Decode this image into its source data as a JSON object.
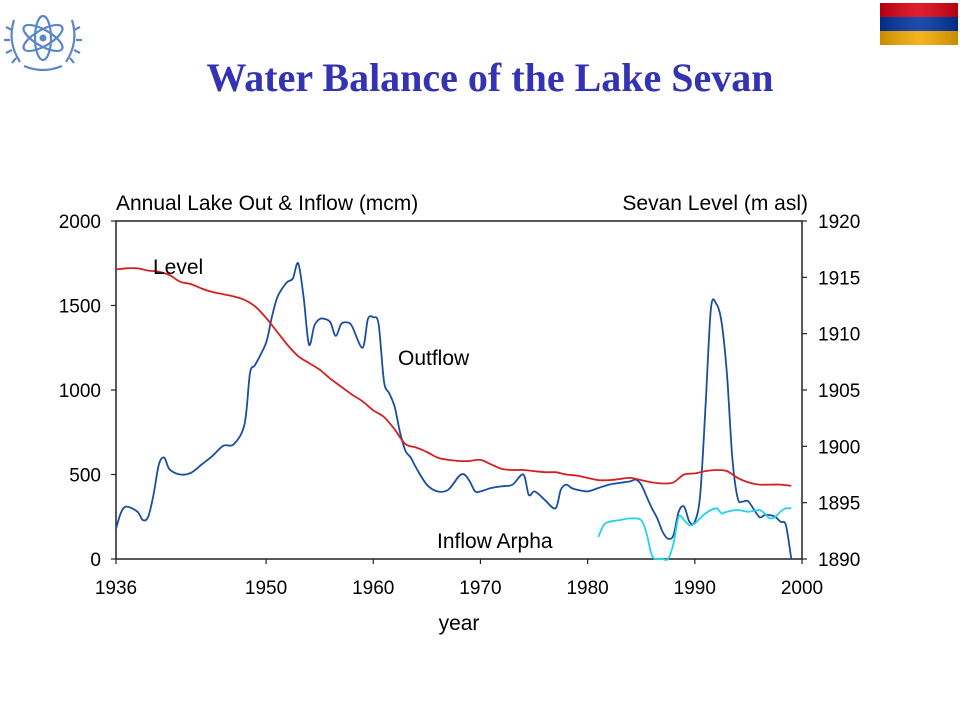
{
  "slide": {
    "title": "Water Balance of the Lake Sevan"
  },
  "icons": {
    "logo": "un-atom-emblem-icon",
    "flag": "armenia-flag-icon",
    "flag_colors": [
      "#d90012",
      "#0033a0",
      "#f2a800"
    ]
  },
  "chart_data": {
    "type": "line",
    "x_label": "year",
    "left_axis_title": "Annual Lake Out & Inflow (mcm)",
    "right_axis_title": "Sevan Level (m asl)",
    "xlim": [
      1936,
      2000
    ],
    "ylim_left": [
      0,
      2000
    ],
    "ylim_right": [
      1890,
      1920
    ],
    "x_ticks": [
      "1936",
      "1950",
      "1960",
      "1970",
      "1980",
      "1990",
      "2000"
    ],
    "left_ticks": [
      "0",
      "500",
      "1000",
      "1500",
      "2000"
    ],
    "right_ticks": [
      "1890",
      "1895",
      "1900",
      "1905",
      "1910",
      "1915",
      "1920"
    ],
    "grid": false,
    "series": [
      {
        "name": "Outflow",
        "axis": "left",
        "color": "#1a4ea0",
        "x": [
          1936,
          1936.5,
          1937,
          1938,
          1938.5,
          1939,
          1939.5,
          1940,
          1940.5,
          1941,
          1942,
          1943,
          1944,
          1945,
          1946,
          1947,
          1948,
          1948.5,
          1949,
          1950,
          1950.5,
          1951,
          1951.5,
          1952,
          1952.5,
          1953,
          1953.5,
          1954,
          1954.5,
          1955,
          1955.5,
          1956,
          1956.5,
          1957,
          1957.5,
          1958,
          1959,
          1959.5,
          1960,
          1960.5,
          1961,
          1961.5,
          1962,
          1962.5,
          1963,
          1963.5,
          1964,
          1965,
          1966,
          1967,
          1968,
          1968.5,
          1969,
          1969.5,
          1970,
          1971,
          1972,
          1973,
          1974,
          1974.5,
          1975,
          1975.5,
          1976,
          1977,
          1977.5,
          1978,
          1978.5,
          1979,
          1980,
          1981,
          1982,
          1983,
          1984,
          1984.5,
          1985,
          1985.5,
          1986,
          1986.5,
          1987,
          1987.5,
          1988,
          1988.5,
          1989,
          1989.5,
          1990,
          1990.5,
          1991,
          1991.5,
          1992,
          1992.5,
          1993,
          1993.5,
          1994,
          1994.5,
          1995,
          1996,
          1996.5,
          1997,
          1997.5,
          1998,
          1998.5,
          1999
        ],
        "values": [
          180,
          280,
          310,
          280,
          230,
          250,
          380,
          560,
          600,
          530,
          500,
          510,
          560,
          610,
          670,
          680,
          800,
          1100,
          1150,
          1280,
          1420,
          1540,
          1600,
          1640,
          1660,
          1750,
          1550,
          1270,
          1380,
          1420,
          1420,
          1400,
          1320,
          1390,
          1400,
          1380,
          1250,
          1420,
          1430,
          1390,
          1050,
          980,
          900,
          750,
          640,
          600,
          540,
          440,
          400,
          410,
          490,
          500,
          460,
          400,
          400,
          420,
          430,
          440,
          500,
          380,
          400,
          380,
          350,
          300,
          410,
          440,
          420,
          410,
          400,
          420,
          440,
          450,
          460,
          470,
          440,
          370,
          300,
          240,
          160,
          120,
          140,
          280,
          310,
          220,
          220,
          380,
          900,
          1480,
          1510,
          1400,
          1090,
          600,
          360,
          340,
          340,
          250,
          260,
          260,
          250,
          220,
          200,
          0
        ],
        "label": "Outflow"
      },
      {
        "name": "Level",
        "axis": "right",
        "color": "#d42020",
        "x": [
          1936,
          1937,
          1938,
          1939,
          1940,
          1941,
          1942,
          1943,
          1944,
          1945,
          1946,
          1947,
          1948,
          1949,
          1950,
          1951,
          1952,
          1953,
          1954,
          1955,
          1956,
          1957,
          1958,
          1959,
          1960,
          1961,
          1962,
          1963,
          1964,
          1965,
          1966,
          1967,
          1968,
          1969,
          1970,
          1971,
          1972,
          1973,
          1974,
          1975,
          1976,
          1977,
          1978,
          1979,
          1980,
          1981,
          1982,
          1983,
          1984,
          1985,
          1986,
          1987,
          1988,
          1989,
          1990,
          1991,
          1992,
          1993,
          1994,
          1995,
          1996,
          1997,
          1998,
          1999
        ],
        "values": [
          1915.7,
          1915.8,
          1915.8,
          1915.6,
          1915.5,
          1915.2,
          1914.6,
          1914.4,
          1914.0,
          1913.7,
          1913.5,
          1913.3,
          1913.0,
          1912.4,
          1911.4,
          1910.2,
          1909.0,
          1908.0,
          1907.4,
          1906.8,
          1906.0,
          1905.3,
          1904.6,
          1904.0,
          1903.2,
          1902.6,
          1901.5,
          1900.2,
          1899.9,
          1899.5,
          1899.0,
          1898.8,
          1898.7,
          1898.7,
          1898.8,
          1898.4,
          1898.0,
          1897.9,
          1897.9,
          1897.8,
          1897.7,
          1897.7,
          1897.5,
          1897.4,
          1897.2,
          1897.0,
          1897.0,
          1897.1,
          1897.2,
          1897.0,
          1896.8,
          1896.7,
          1896.8,
          1897.5,
          1897.6,
          1897.8,
          1897.9,
          1897.8,
          1897.2,
          1896.8,
          1896.6,
          1896.6,
          1896.6,
          1896.5
        ],
        "label": "Level"
      },
      {
        "name": "Inflow Arpha",
        "axis": "left",
        "color": "#22d4e8",
        "x": [
          1981,
          1981.5,
          1982,
          1983,
          1984,
          1985,
          1985.5,
          1986,
          1986.5,
          1987,
          1987.5,
          1988,
          1988.5,
          1989,
          1989.5,
          1990,
          1991,
          1992,
          1992.5,
          1993,
          1994,
          1995,
          1996,
          1996.5,
          1997,
          1997.5,
          1998,
          1998.5,
          1999
        ],
        "values": [
          130,
          200,
          220,
          230,
          240,
          230,
          150,
          20,
          0,
          0,
          0,
          90,
          250,
          230,
          200,
          210,
          270,
          300,
          270,
          280,
          290,
          280,
          290,
          270,
          240,
          250,
          280,
          300,
          300
        ],
        "label": "Inflow Arpha"
      }
    ]
  }
}
